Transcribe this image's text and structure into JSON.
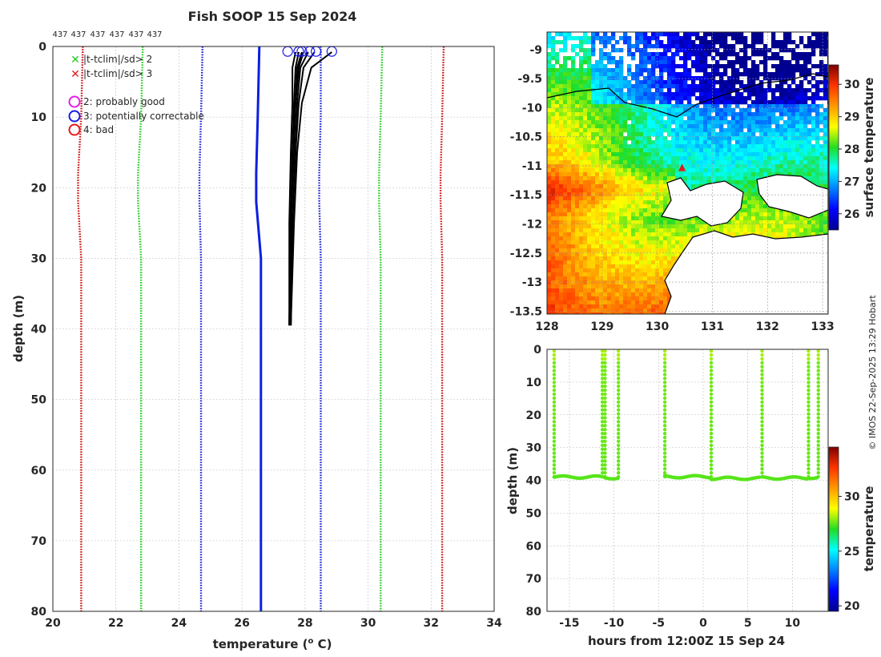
{
  "title": "Fish SOOP 15 Sep 2024",
  "credit": "© IMOS 22-Sep-2025 13:29 Hobart",
  "colors": {
    "observed": "#000000",
    "climatology": "#0b1fe0",
    "sd1": "#1a22d8",
    "sd2": "#22cc22",
    "sd3": "#cc1111",
    "flag_mag": "#e61ee6",
    "flag_blue": "#1a1ae6",
    "flag_red": "#e61a1a"
  },
  "chart_data": [
    {
      "id": "profile",
      "type": "line",
      "xlabel": "temperature (",
      "xlabel_sup": "o",
      "xlabel_end": " C)",
      "ylabel": "depth (m)",
      "xlim": [
        20,
        34
      ],
      "ylim": [
        0,
        80
      ],
      "x_ticks": [
        "20",
        "22",
        "24",
        "26",
        "28",
        "30",
        "32",
        "34"
      ],
      "y_ticks": [
        "0",
        "10",
        "20",
        "30",
        "40",
        "50",
        "60",
        "70",
        "80"
      ],
      "top_labels": [
        "437",
        "437",
        "437",
        "437",
        "437",
        "437"
      ],
      "legend": {
        "markers": [
          "|t-tclim|/sd> 2",
          "|t-tclim|/sd> 3"
        ],
        "flags": [
          "2: probably good",
          "3: potentially correctable",
          "4: bad"
        ]
      },
      "climatology": {
        "depths": [
          0,
          10,
          18,
          22,
          30,
          40,
          80
        ],
        "mean": [
          26.55,
          26.5,
          26.45,
          26.45,
          26.6,
          26.6,
          26.6
        ],
        "plus1": [
          28.5,
          28.5,
          28.45,
          28.45,
          28.5,
          28.5,
          28.5
        ],
        "minus1": [
          24.75,
          24.7,
          24.65,
          24.65,
          24.7,
          24.7,
          24.7
        ],
        "plus2": [
          30.45,
          30.4,
          30.35,
          30.35,
          30.4,
          30.4,
          30.4
        ],
        "minus2": [
          22.85,
          22.8,
          22.7,
          22.7,
          22.8,
          22.8,
          22.8
        ],
        "plus3": [
          32.4,
          32.35,
          32.3,
          32.3,
          32.35,
          32.35,
          32.35
        ],
        "minus3": [
          20.95,
          20.9,
          20.8,
          20.8,
          20.9,
          20.9,
          20.9
        ]
      },
      "profiles": [
        {
          "depths": [
            0.8,
            3,
            8,
            15,
            25,
            39.5
          ],
          "temps": [
            27.7,
            27.6,
            27.6,
            27.55,
            27.5,
            27.5
          ]
        },
        {
          "depths": [
            0.8,
            3,
            8,
            15,
            25,
            39.5
          ],
          "temps": [
            27.8,
            27.7,
            27.65,
            27.6,
            27.55,
            27.5
          ]
        },
        {
          "depths": [
            0.8,
            3,
            8,
            15,
            25,
            39.5
          ],
          "temps": [
            27.9,
            27.75,
            27.7,
            27.65,
            27.55,
            27.55
          ]
        },
        {
          "depths": [
            0.8,
            3,
            8,
            15,
            25,
            39.5
          ],
          "temps": [
            28.1,
            27.85,
            27.75,
            27.7,
            27.6,
            27.55
          ]
        },
        {
          "depths": [
            0.8,
            3,
            8,
            15,
            25,
            39.5
          ],
          "temps": [
            28.3,
            27.95,
            27.8,
            27.7,
            27.6,
            27.55
          ]
        },
        {
          "depths": [
            0.8,
            3,
            8,
            15,
            25,
            39.5
          ],
          "temps": [
            28.85,
            28.2,
            27.9,
            27.75,
            27.65,
            27.55
          ]
        },
        {
          "depths": [
            0.8,
            3,
            8,
            15,
            25,
            39.5
          ],
          "temps": [
            27.95,
            27.8,
            27.7,
            27.6,
            27.55,
            27.5
          ]
        }
      ],
      "flagged_points": {
        "depth": 0.7,
        "temps": [
          27.45,
          27.8,
          27.9,
          28.15,
          28.35,
          28.85
        ],
        "flag": "3"
      }
    },
    {
      "id": "map",
      "type": "heatmap",
      "xlim": [
        128,
        133.1
      ],
      "ylim": [
        -13.55,
        -8.7
      ],
      "x_ticks": [
        "128",
        "129",
        "130",
        "131",
        "132",
        "133"
      ],
      "y_ticks": [
        "-9",
        "-9.5",
        "-10",
        "-10.5",
        "-11",
        "-11.5",
        "-12",
        "-12.5",
        "-13",
        "-13.5"
      ],
      "colorbar_label": "surface temperature",
      "colorbar_ticks": [
        "26",
        "27",
        "28",
        "29",
        "30"
      ],
      "colorbar_range": [
        25.5,
        30.6
      ],
      "marker": {
        "lon": 130.45,
        "lat": -11.0
      }
    },
    {
      "id": "time_depth",
      "type": "scatter",
      "xlabel": "hours from 12:00Z 15 Sep 24",
      "ylabel": "depth (m)",
      "xlim": [
        -17.5,
        14
      ],
      "ylim": [
        0,
        80
      ],
      "x_ticks": [
        "-15",
        "-10",
        "-5",
        "0",
        "5",
        "10"
      ],
      "y_ticks": [
        "0",
        "10",
        "20",
        "30",
        "40",
        "50",
        "60",
        "70",
        "80"
      ],
      "colorbar_label": "temperature",
      "colorbar_ticks": [
        "20",
        "25",
        "30"
      ],
      "colorbar_range": [
        19.5,
        34.5
      ],
      "casts": [
        {
          "start": -16.7,
          "end": -11.2,
          "bottom": 39.0
        },
        {
          "start": -11.0,
          "end": -9.5,
          "bottom": 39.2
        },
        {
          "start": -4.3,
          "end": 0.8,
          "bottom": 38.9
        },
        {
          "start": 0.9,
          "end": 6.4,
          "bottom": 39.4
        },
        {
          "start": 6.6,
          "end": 11.7,
          "bottom": 39.3
        },
        {
          "start": 11.8,
          "end": 12.8,
          "bottom": 39.1
        }
      ],
      "down_casts": [
        -16.7,
        -11.3,
        -11.0,
        -9.5,
        -4.3,
        0.9,
        6.6,
        11.8,
        12.9
      ]
    }
  ]
}
